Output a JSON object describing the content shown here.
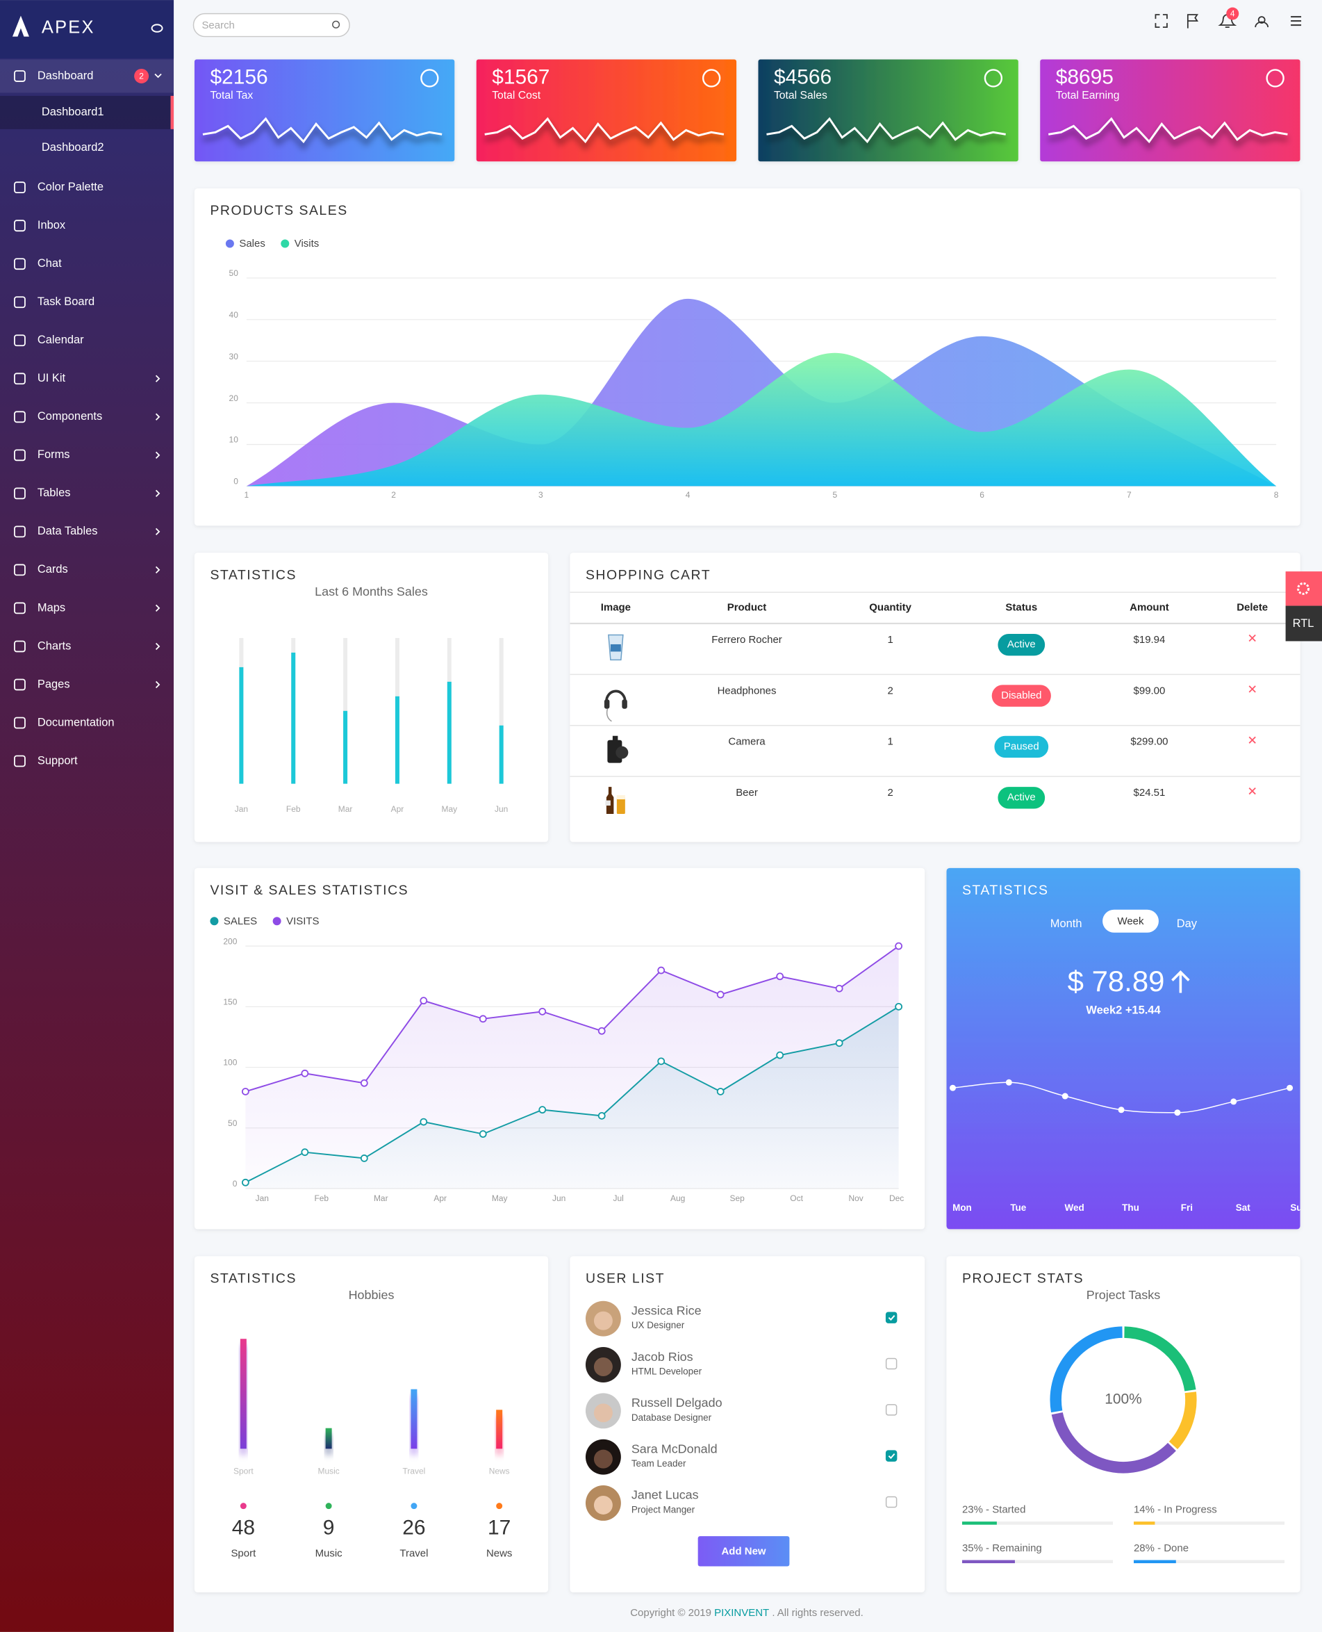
{
  "brand": "APEX",
  "sidebar": {
    "items": [
      {
        "label": "Dashboard",
        "badge": 2,
        "children": [
          "Dashboard1",
          "Dashboard2"
        ]
      },
      {
        "label": "Color Palette"
      },
      {
        "label": "Inbox"
      },
      {
        "label": "Chat"
      },
      {
        "label": "Task Board"
      },
      {
        "label": "Calendar"
      },
      {
        "label": "UI Kit",
        "submenu": true
      },
      {
        "label": "Components",
        "submenu": true
      },
      {
        "label": "Forms",
        "submenu": true
      },
      {
        "label": "Tables",
        "submenu": true
      },
      {
        "label": "Data Tables",
        "submenu": true
      },
      {
        "label": "Cards",
        "submenu": true
      },
      {
        "label": "Maps",
        "submenu": true
      },
      {
        "label": "Charts",
        "submenu": true
      },
      {
        "label": "Pages",
        "submenu": true
      },
      {
        "label": "Documentation"
      },
      {
        "label": "Support"
      }
    ]
  },
  "header": {
    "search_placeholder": "Search",
    "notifications": 4
  },
  "stat_cards": [
    {
      "amount": "$2156",
      "label": "Total Tax",
      "colors": [
        "#7457f5",
        "#44a9f6"
      ]
    },
    {
      "amount": "$1567",
      "label": "Total Cost",
      "colors": [
        "#f5225e",
        "#ff6b0e"
      ]
    },
    {
      "amount": "$4566",
      "label": "Total Sales",
      "colors": [
        "#0e3f62",
        "#58c93a"
      ]
    },
    {
      "amount": "$8695",
      "label": "Total Earning",
      "colors": [
        "#b33bd8",
        "#f5366a"
      ]
    }
  ],
  "chart_data": [
    {
      "type": "area",
      "title": "PRODUCTS SALES",
      "x": [
        1,
        2,
        3,
        4,
        5,
        6,
        7,
        8
      ],
      "xlim": [
        1,
        8
      ],
      "xticks": [
        1,
        2,
        3,
        4,
        5,
        6,
        7,
        8
      ],
      "ylim": [
        0,
        50
      ],
      "yticks": [
        0,
        10,
        20,
        30,
        40,
        50
      ],
      "grid": true,
      "series": [
        {
          "name": "Sales",
          "color": "#6a78f0",
          "gradient": [
            "#a46ef6",
            "#62aaf4"
          ],
          "gradient_direction": "horizontal",
          "values": [
            0,
            20,
            10,
            45,
            20,
            36,
            18,
            0
          ]
        },
        {
          "name": "Visits",
          "color": "#2ed8a6",
          "gradient": [
            "#86f5a6",
            "#12c3f0"
          ],
          "gradient_direction": "vertical",
          "values": [
            0,
            5,
            22,
            14,
            32,
            13,
            28,
            0
          ]
        }
      ]
    },
    {
      "type": "bar",
      "title": "STATISTICS",
      "subtitle": "Last 6 Months Sales",
      "categories": [
        "Jan",
        "Feb",
        "Mar",
        "Apr",
        "May",
        "Jun"
      ],
      "values": [
        80,
        90,
        50,
        60,
        70,
        40
      ],
      "ylim": [
        0,
        100
      ],
      "color": "#1cc8d8"
    },
    {
      "type": "line",
      "title": "VISIT & SALES STATISTICS",
      "categories": [
        "Jan",
        "Feb",
        "Mar",
        "Apr",
        "May",
        "Jun",
        "Jul",
        "Aug",
        "Sep",
        "Oct",
        "Nov",
        "Dec"
      ],
      "ylim": [
        0,
        200
      ],
      "yticks": [
        0,
        50,
        100,
        150,
        200
      ],
      "grid": true,
      "series": [
        {
          "name": "SALES",
          "color": "#139ca4",
          "values": [
            5,
            30,
            25,
            55,
            45,
            65,
            60,
            105,
            80,
            110,
            120,
            150
          ]
        },
        {
          "name": "VISITS",
          "color": "#8e4be6",
          "values": [
            80,
            95,
            87,
            155,
            140,
            146,
            130,
            180,
            160,
            175,
            165,
            200
          ]
        }
      ]
    },
    {
      "type": "line",
      "title": "STATISTICS",
      "tabs": [
        "Month",
        "Week",
        "Day"
      ],
      "active_tab": 1,
      "amount": "$ 78.89",
      "change": "Week2 +15.44",
      "categories": [
        "Mon",
        "Tue",
        "Wed",
        "Thu",
        "Fri",
        "Sat",
        "Sun"
      ],
      "values": [
        7.9,
        8.1,
        7.6,
        7.1,
        7.0,
        7.4,
        7.9
      ],
      "color": "#ffffff",
      "background": [
        "#4ba6f4",
        "#7b4cf2"
      ]
    },
    {
      "type": "bar",
      "title": "STATISTICS",
      "subtitle": "Hobbies",
      "categories": [
        "Sport",
        "Music",
        "Travel",
        "News"
      ],
      "values": [
        48,
        9,
        26,
        17
      ],
      "ylim": [
        0,
        50
      ],
      "colors": [
        [
          "#e93a8c",
          "#7a3fd8"
        ],
        [
          "#2fb35a",
          "#1d2f70"
        ],
        [
          "#42a6f5",
          "#7b3fe8"
        ],
        [
          "#ff7a1a",
          "#f5266a"
        ]
      ]
    },
    {
      "type": "donut",
      "title": "PROJECT STATS",
      "subtitle": "Project Tasks",
      "center_label": "100%",
      "categories": [
        "Started",
        "In Progress",
        "Remaining",
        "Done"
      ],
      "values": [
        23,
        14,
        35,
        28
      ],
      "value_labels": [
        "23% - Started",
        "14% - In Progress",
        "35% - Remaining",
        "28% - Done"
      ],
      "colors": [
        "#1bbf78",
        "#fcc02a",
        "#7e57c2",
        "#2196f3"
      ],
      "xlim": [
        0,
        100
      ]
    }
  ],
  "shopping_cart": {
    "title": "SHOPPING CART",
    "headers": [
      "Image",
      "Product",
      "Quantity",
      "Status",
      "Amount",
      "Delete"
    ],
    "rows": [
      {
        "product": "Ferrero Rocher",
        "quantity": 1,
        "status": "Active",
        "status_color": "#079ca0",
        "amount": "$19.94"
      },
      {
        "product": "Headphones",
        "quantity": 2,
        "status": "Disabled",
        "status_color": "#ff586b",
        "amount": "$99.00"
      },
      {
        "product": "Camera",
        "quantity": 1,
        "status": "Paused",
        "status_color": "#1cbcd8",
        "amount": "$299.00"
      },
      {
        "product": "Beer",
        "quantity": 2,
        "status": "Active",
        "status_color": "#0cc27e",
        "amount": "$24.51"
      }
    ]
  },
  "user_list": {
    "title": "USER LIST",
    "button": "Add New",
    "users": [
      {
        "name": "Jessica Rice",
        "role": "UX Designer",
        "checked": true
      },
      {
        "name": "Jacob Rios",
        "role": "HTML Developer",
        "checked": false
      },
      {
        "name": "Russell Delgado",
        "role": "Database Designer",
        "checked": false
      },
      {
        "name": "Sara McDonald",
        "role": "Team Leader",
        "checked": true
      },
      {
        "name": "Janet Lucas",
        "role": "Project Manger",
        "checked": false
      }
    ]
  },
  "settings_tab": {
    "label": "RTL"
  },
  "footer": {
    "prefix": "Copyright © 2019 ",
    "link": "PIXINVENT",
    "suffix": " . All rights reserved."
  }
}
